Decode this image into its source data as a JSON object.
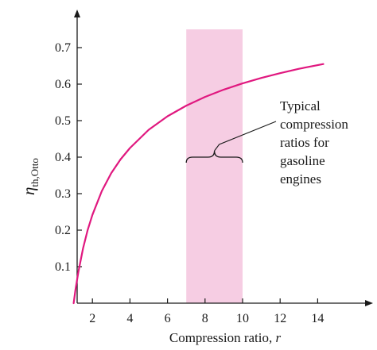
{
  "chart_data": {
    "type": "line",
    "xlabel": "Compression ratio, ",
    "xlabel_var": "r",
    "ylabel_main": "η",
    "ylabel_sub": "th,Otto",
    "xlim": [
      0,
      15
    ],
    "ylim": [
      0,
      0.8
    ],
    "xticks": [
      2,
      4,
      6,
      8,
      10,
      12,
      14
    ],
    "yticks": [
      0.1,
      0.2,
      0.3,
      0.4,
      0.5,
      0.6,
      0.7
    ],
    "ytick_labels": [
      "0.1",
      "0.2",
      "0.3",
      "0.4",
      "0.5",
      "0.6",
      "0.7"
    ],
    "grid": false,
    "series": [
      {
        "color": "#e0187f",
        "x": [
          1.0,
          1.1,
          1.25,
          1.5,
          1.75,
          2,
          2.5,
          3,
          3.5,
          4,
          5,
          6,
          7,
          8,
          9,
          10,
          11,
          12,
          13,
          14.3
        ],
        "y": [
          0.0,
          0.038,
          0.085,
          0.15,
          0.201,
          0.242,
          0.307,
          0.356,
          0.394,
          0.425,
          0.475,
          0.512,
          0.541,
          0.565,
          0.585,
          0.602,
          0.617,
          0.63,
          0.642,
          0.655
        ]
      }
    ],
    "shaded_band": {
      "x_from": 7,
      "x_to": 10,
      "color": "#f6cde3"
    },
    "annotation": {
      "lines": [
        "Typical",
        "compression",
        "ratios for",
        "gasoline",
        "engines"
      ],
      "brace_x_from": 7,
      "brace_x_to": 10,
      "brace_y": 0.4
    }
  }
}
